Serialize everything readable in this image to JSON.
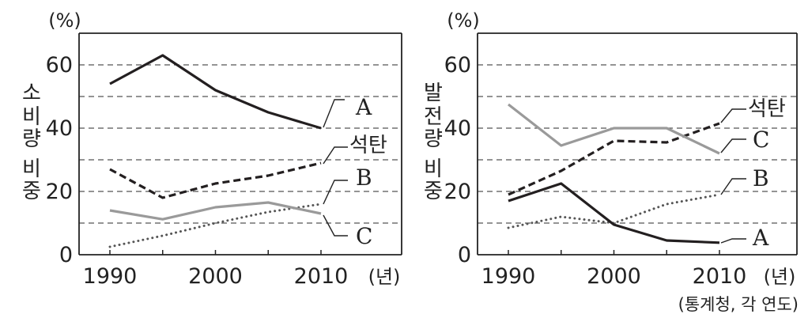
{
  "source": "(통계청, 각 연도)",
  "chart_data": [
    {
      "type": "line",
      "y_unit": "(%)",
      "x_unit": "(년)",
      "ylabel": [
        "소",
        "비",
        "량",
        "비",
        "중"
      ],
      "x": [
        1990,
        1995,
        2000,
        2005,
        2010
      ],
      "x_ticks": [
        1990,
        2000,
        2010
      ],
      "y_ticks": [
        0,
        20,
        40,
        60
      ],
      "ylim": [
        0,
        70
      ],
      "grid": "dashed horizontal every 10",
      "series": [
        {
          "name": "A",
          "values": [
            54,
            63,
            52,
            45,
            40
          ],
          "style": "solid",
          "color": "#231f20"
        },
        {
          "name": "석탄",
          "values": [
            27,
            18,
            22.5,
            25,
            29
          ],
          "style": "dashed",
          "color": "#231f20"
        },
        {
          "name": "B",
          "values": [
            2.5,
            6,
            10,
            13.5,
            16
          ],
          "style": "dotted",
          "color": "#555555"
        },
        {
          "name": "C",
          "values": [
            14,
            11.2,
            15,
            16.5,
            13
          ],
          "style": "solid",
          "color": "#9a9a9a"
        }
      ]
    },
    {
      "type": "line",
      "y_unit": "(%)",
      "x_unit": "(년)",
      "ylabel": [
        "발",
        "전",
        "량",
        "비",
        "중"
      ],
      "x": [
        1990,
        1995,
        2000,
        2005,
        2010
      ],
      "x_ticks": [
        1990,
        2000,
        2010
      ],
      "y_ticks": [
        0,
        20,
        40,
        60
      ],
      "ylim": [
        0,
        70
      ],
      "grid": "dashed horizontal every 10",
      "series": [
        {
          "name": "석탄",
          "values": [
            19,
            26.5,
            36,
            35.5,
            41.5
          ],
          "style": "dashed",
          "color": "#231f20"
        },
        {
          "name": "C",
          "values": [
            47.5,
            34.5,
            40,
            40,
            32
          ],
          "style": "solid",
          "color": "#9a9a9a"
        },
        {
          "name": "B",
          "values": [
            8.5,
            12,
            10,
            16,
            19
          ],
          "style": "dotted",
          "color": "#555555"
        },
        {
          "name": "A",
          "values": [
            17,
            22.5,
            9.5,
            4.5,
            3.8
          ],
          "style": "solid",
          "color": "#231f20"
        }
      ]
    }
  ]
}
